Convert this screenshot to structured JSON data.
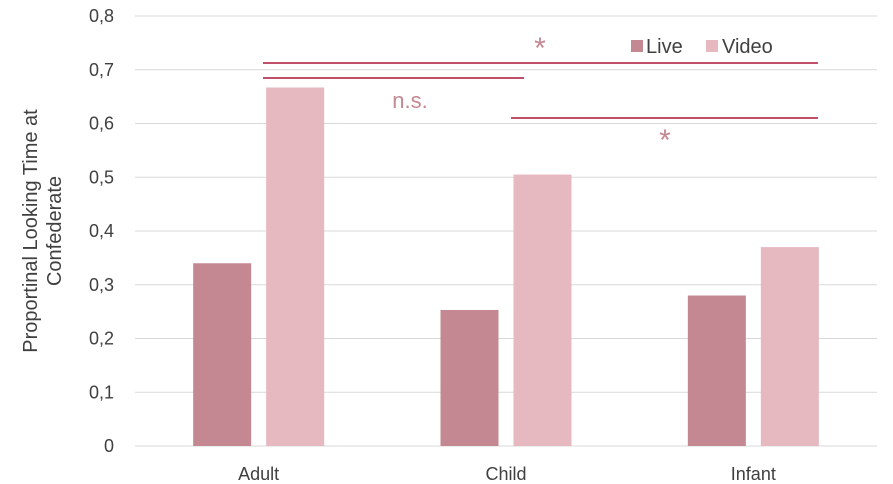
{
  "chart_data": {
    "type": "bar",
    "title": "",
    "xlabel": "",
    "ylabel": [
      "Proportinal Looking Time at",
      "Confederate"
    ],
    "categories": [
      "Adult",
      "Child",
      "Infant"
    ],
    "series": [
      {
        "name": "Live",
        "values": [
          0.34,
          0.253,
          0.28
        ],
        "color": "#c38891"
      },
      {
        "name": "Video",
        "values": [
          0.667,
          0.505,
          0.37
        ],
        "color": "#e6b8c0"
      }
    ],
    "ylim": [
      0,
      0.8
    ],
    "yticks": [
      "0",
      "0,1",
      "0,2",
      "0,3",
      "0,4",
      "0,5",
      "0,6",
      "0,7",
      "0,8"
    ],
    "grid": true,
    "legend_position": "top-right",
    "annotations": [
      {
        "from": "Adult",
        "to": "Infant",
        "label": "*"
      },
      {
        "from": "Adult",
        "to": "Child",
        "label": "n.s."
      },
      {
        "from": "Child",
        "to": "Infant",
        "label": "*"
      }
    ],
    "annotation_color": "#c0506a",
    "annotation_text_color": "#c38891",
    "grid_color": "#d9d9d9"
  }
}
